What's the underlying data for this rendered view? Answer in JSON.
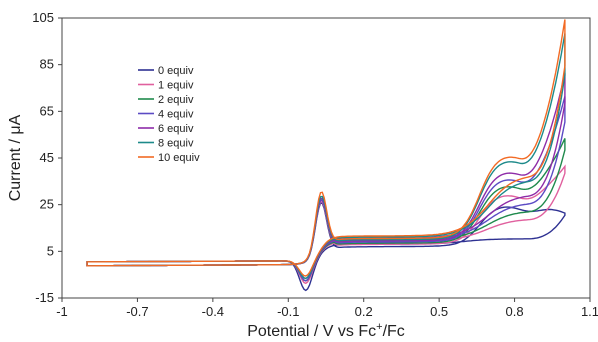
{
  "chart_data": {
    "type": "line",
    "title": "",
    "xlabel": "Potential / V vs Fc",
    "xlabel_sup": "+",
    "xlabel_tail": "/Fc",
    "ylabel": "Current / μA",
    "xlim": [
      -1,
      1.1
    ],
    "ylim": [
      -15,
      105
    ],
    "x_ticks": [
      -1,
      -0.7,
      -0.4,
      -0.1,
      0.2,
      0.5,
      0.8,
      1.1
    ],
    "x_tick_labels": [
      "-1",
      "-0.7",
      "-0.4",
      "-0.1",
      "0.2",
      "0.5",
      "0.8",
      "1.1"
    ],
    "y_ticks": [
      -15,
      5,
      25,
      45,
      65,
      85,
      105
    ],
    "y_tick_labels": [
      "-15",
      "5",
      "25",
      "45",
      "65",
      "85",
      "105"
    ],
    "grid": false,
    "legend_position": "top-left",
    "series": [
      {
        "name": "0 equiv",
        "color": "#2e3192",
        "lower": 6,
        "ipc": -12,
        "ipa": 30,
        "upper_factor": 0.0,
        "plateau": 27,
        "end": 20,
        "rev_end": 20
      },
      {
        "name": "1 equiv",
        "color": "#e0609e",
        "lower": 7,
        "ipc": -9,
        "ipa": 31,
        "upper_factor": 0.25,
        "plateau": 32,
        "end": 40,
        "rev_end": 38
      },
      {
        "name": "2 equiv",
        "color": "#1f8a4c",
        "lower": 7.5,
        "ipc": -8,
        "ipa": 32,
        "upper_factor": 0.35,
        "plateau": 36,
        "end": 52,
        "rev_end": 48
      },
      {
        "name": "4 equiv",
        "color": "#5b4bc4",
        "lower": 8,
        "ipc": -8,
        "ipa": 32,
        "upper_factor": 0.45,
        "plateau": 39,
        "end": 70,
        "rev_end": 60
      },
      {
        "name": "6 equiv",
        "color": "#8e2ca8",
        "lower": 8.5,
        "ipc": -7,
        "ipa": 33,
        "upper_factor": 0.55,
        "plateau": 42,
        "end": 80,
        "rev_end": 68
      },
      {
        "name": "8 equiv",
        "color": "#1d8a8a",
        "lower": 9,
        "ipc": -7,
        "ipa": 34,
        "upper_factor": 0.75,
        "plateau": 47,
        "end": 97,
        "rev_end": 80
      },
      {
        "name": "10 equiv",
        "color": "#f26a24",
        "lower": 9.5,
        "ipc": -6,
        "ipa": 36,
        "upper_factor": 0.8,
        "plateau": 49,
        "end": 103,
        "rev_end": 84
      }
    ]
  }
}
